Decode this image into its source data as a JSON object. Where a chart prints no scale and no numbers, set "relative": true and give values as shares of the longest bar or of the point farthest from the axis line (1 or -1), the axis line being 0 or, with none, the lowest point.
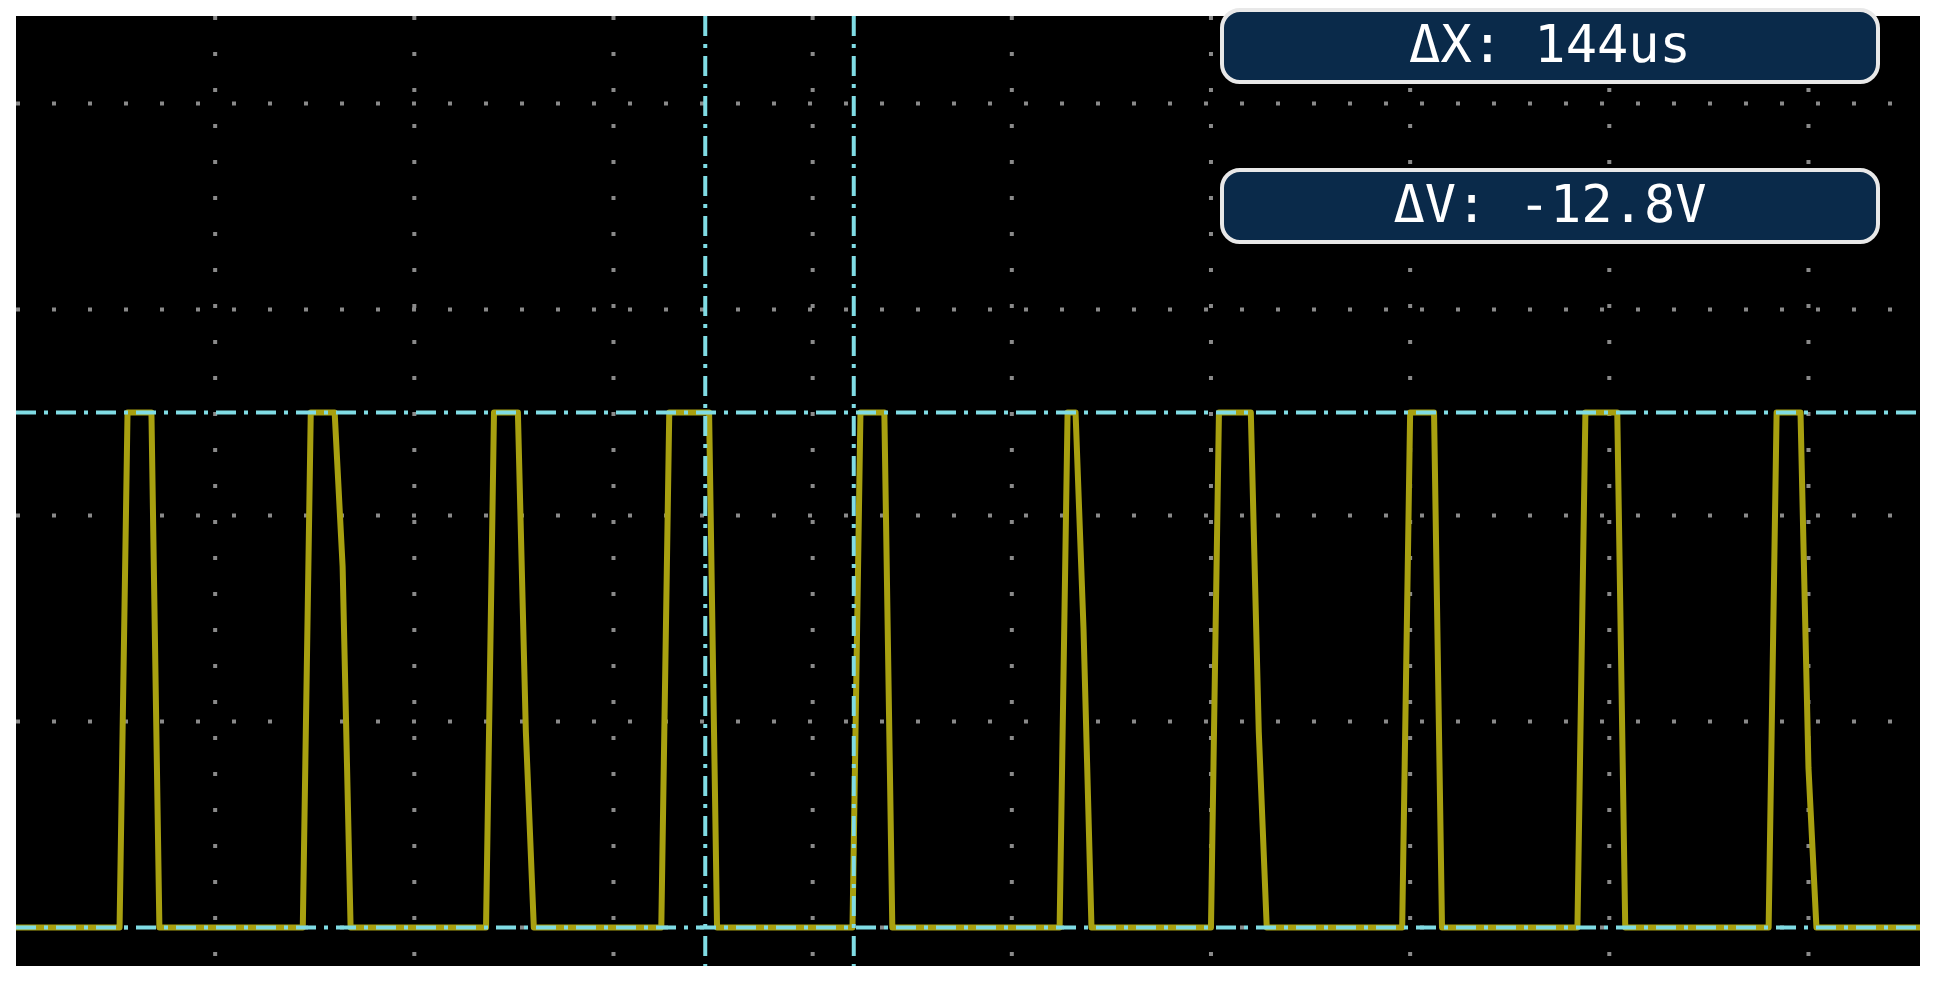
{
  "chart_data": {
    "type": "line",
    "relative": true,
    "grid": true,
    "legend": false,
    "categories": [
      null,
      null,
      null,
      null,
      null,
      null,
      null,
      null,
      null,
      null,
      null,
      null,
      null,
      null,
      null,
      null,
      null,
      null,
      null,
      null,
      null,
      null,
      null,
      null,
      null,
      null,
      null,
      null,
      null,
      null,
      null,
      null,
      null,
      null,
      null,
      null,
      null,
      null,
      null,
      null,
      null,
      null,
      null,
      null,
      null,
      null,
      null,
      null,
      null,
      null,
      null,
      null,
      null,
      null,
      null,
      null,
      null,
      null,
      null,
      null,
      null,
      null,
      null,
      null,
      null,
      null,
      null,
      null,
      null,
      null,
      null,
      null,
      null,
      null,
      null,
      null,
      null,
      null,
      null,
      null,
      null,
      null,
      null,
      null,
      null,
      null,
      null,
      null,
      null,
      null,
      null,
      null,
      null,
      null,
      null,
      null,
      null,
      null,
      null,
      null,
      null,
      null,
      null,
      null,
      null,
      null,
      null,
      null,
      null,
      null,
      null,
      null,
      null,
      null,
      null,
      null,
      null,
      null,
      null,
      null,
      null,
      null,
      null,
      null,
      null,
      null,
      null,
      null,
      null,
      null,
      null,
      null,
      null,
      null,
      null,
      null,
      null,
      null,
      null,
      null,
      null,
      null,
      null,
      null,
      null,
      null,
      null,
      null,
      null,
      null,
      null,
      null,
      null,
      null,
      null,
      null,
      null,
      null,
      null,
      null,
      null,
      null,
      null,
      null,
      null,
      null,
      null,
      null,
      null,
      null,
      null,
      null,
      null,
      null,
      null,
      null,
      null,
      null,
      null,
      null,
      null,
      null,
      null,
      null,
      null,
      null,
      null,
      null,
      null,
      null,
      null,
      null,
      null,
      null,
      null,
      null,
      null,
      null,
      null,
      null,
      null,
      null,
      null,
      null,
      null,
      null,
      null,
      null,
      null,
      null,
      null,
      null,
      null,
      null,
      null,
      null,
      null,
      null,
      null,
      null,
      null,
      null,
      null,
      null,
      null,
      null,
      null,
      null,
      null,
      null,
      null,
      null,
      null,
      null,
      null,
      null,
      null,
      null,
      null,
      null
    ],
    "series": [
      {
        "color": "#a8a010",
        "values": [
          0,
          0,
          0,
          0,
          0,
          0,
          0,
          0,
          0,
          0,
          0,
          0,
          0,
          0,
          1,
          1,
          1,
          1,
          0,
          0,
          0,
          0,
          0,
          0,
          0,
          0,
          0,
          0,
          0,
          0,
          0,
          0,
          0,
          0,
          0,
          0,
          0,
          1,
          1,
          1,
          1,
          0.7,
          0,
          0,
          0,
          0,
          0,
          0,
          0,
          0,
          0,
          0,
          0,
          0,
          0,
          0,
          0,
          0,
          0,
          0,
          1,
          1,
          1,
          1,
          0.38,
          0,
          0,
          0,
          0,
          0,
          0,
          0,
          0,
          0,
          0,
          0,
          0,
          0,
          0,
          0,
          0,
          0,
          1,
          1,
          1,
          1,
          1,
          1,
          0,
          0,
          0,
          0,
          0,
          0,
          0,
          0,
          0,
          0,
          0,
          0,
          0,
          0,
          0,
          0,
          0,
          0,
          1,
          1,
          1,
          1,
          0,
          0,
          0,
          0,
          0,
          0,
          0,
          0,
          0,
          0,
          0,
          0,
          0,
          0,
          0,
          0,
          0,
          0,
          0,
          0,
          0,
          0,
          1,
          1,
          0.58,
          0,
          0,
          0,
          0,
          0,
          0,
          0,
          0,
          0,
          0,
          0,
          0,
          0,
          0,
          0,
          0,
          1,
          1,
          1,
          1,
          1,
          0.38,
          0,
          0,
          0,
          0,
          0,
          0,
          0,
          0,
          0,
          0,
          0,
          0,
          0,
          0,
          0,
          0,
          0,
          0,
          1,
          1,
          1,
          1,
          0,
          0,
          0,
          0,
          0,
          0,
          0,
          0,
          0,
          0,
          0,
          0,
          0,
          0,
          0,
          0,
          0,
          0,
          1,
          1,
          1,
          1,
          1,
          0,
          0,
          0,
          0,
          0,
          0,
          0,
          0,
          0,
          0,
          0,
          0,
          0,
          0,
          0,
          0,
          0,
          0,
          0,
          1,
          1,
          1,
          1,
          0.31,
          0,
          0,
          0,
          0,
          0,
          0,
          0,
          0,
          0,
          0,
          0,
          0,
          0,
          0
        ]
      }
    ],
    "annotations": [
      "ΔX: 144us",
      "ΔV: -12.8V"
    ]
  }
}
